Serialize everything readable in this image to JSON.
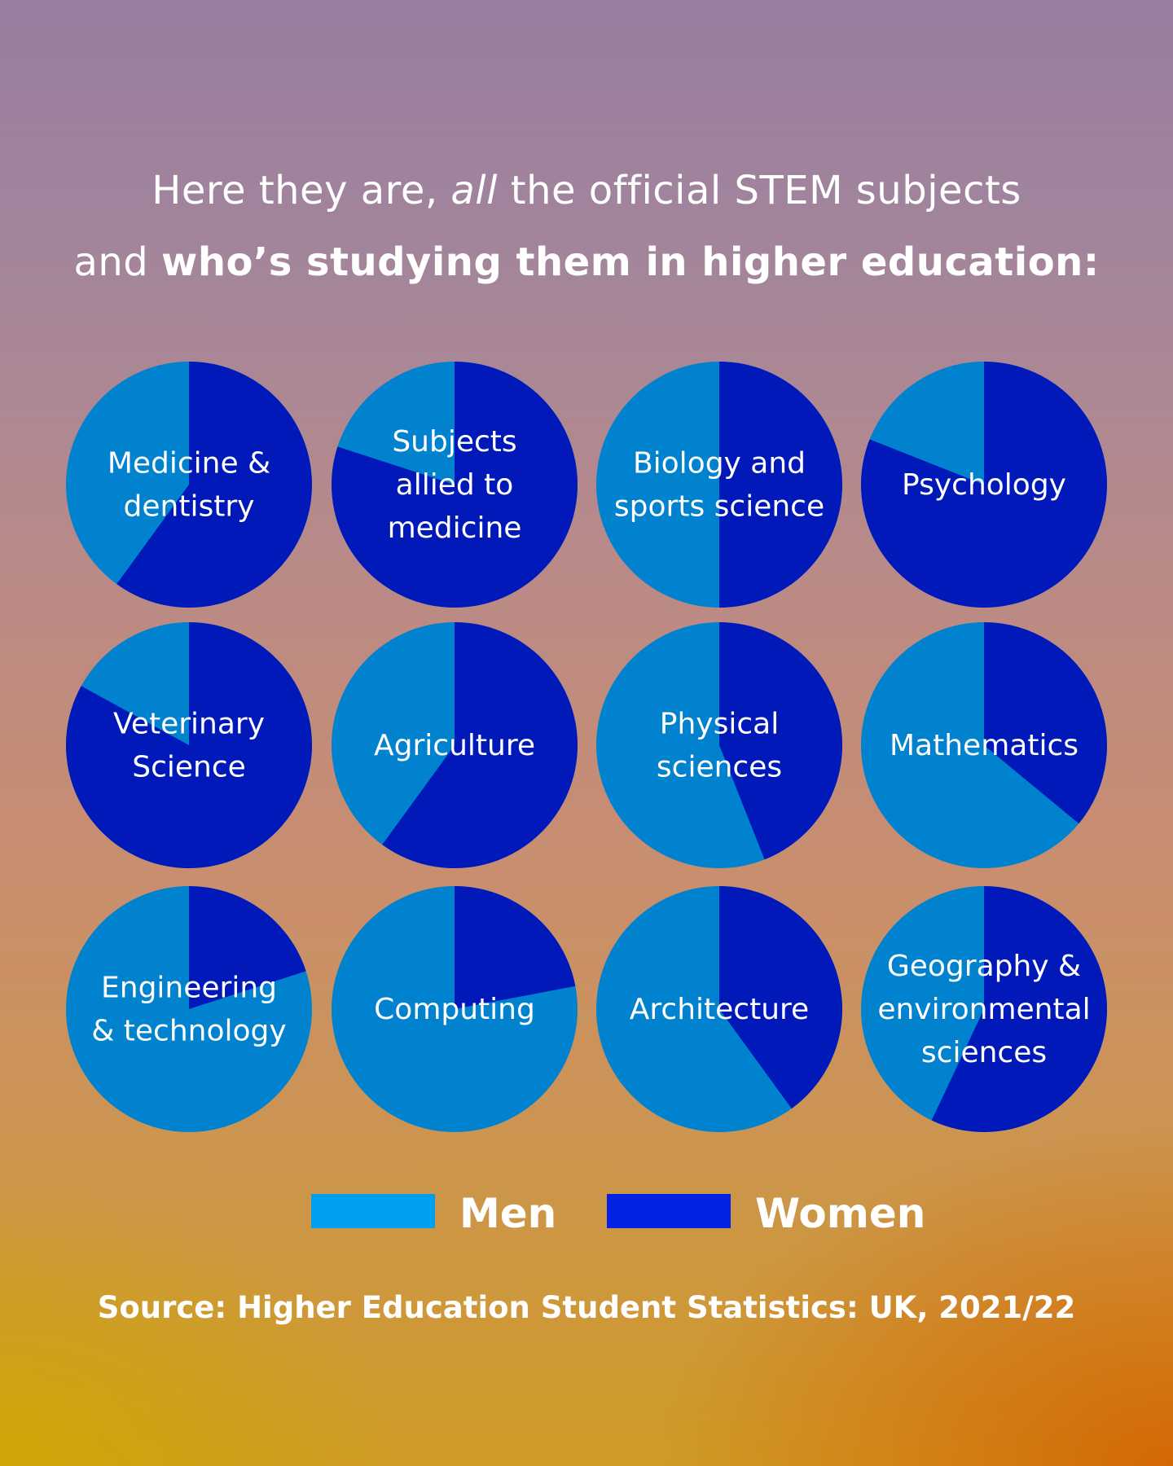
{
  "headline": {
    "line1_a": "Here they are, ",
    "line1_em": "all",
    "line1_b": " the official STEM subjects",
    "line2_a": "and ",
    "line2_bold": "who’s studying them in higher education:"
  },
  "colors": {
    "men": "#0082cf",
    "women": "#0119b8",
    "legend_men": "#00a0f0",
    "legend_women": "#0322e6"
  },
  "chart_data": {
    "type": "pie",
    "series_names": [
      "Men",
      "Women"
    ],
    "pies": [
      {
        "label": [
          "Medicine &",
          "dentistry"
        ],
        "men": 40,
        "women": 60
      },
      {
        "label": [
          "Subjects",
          "allied to",
          "medicine"
        ],
        "men": 20,
        "women": 80
      },
      {
        "label": [
          "Biology and",
          "sports science"
        ],
        "men": 50,
        "women": 50
      },
      {
        "label": [
          "Psychology"
        ],
        "men": 19,
        "women": 81
      },
      {
        "label": [
          "Veterinary",
          "Science"
        ],
        "men": 17,
        "women": 83
      },
      {
        "label": [
          "Agriculture"
        ],
        "men": 40,
        "women": 60
      },
      {
        "label": [
          "Physical",
          "sciences"
        ],
        "men": 56,
        "women": 44
      },
      {
        "label": [
          "Mathematics"
        ],
        "men": 64,
        "women": 36
      },
      {
        "label": [
          "Engineering",
          "& technology"
        ],
        "men": 80,
        "women": 20
      },
      {
        "label": [
          "Computing"
        ],
        "men": 78,
        "women": 22
      },
      {
        "label": [
          "Architecture"
        ],
        "men": 60,
        "women": 40
      },
      {
        "label": [
          "Geography &",
          "environmental",
          "sciences"
        ],
        "men": 43,
        "women": 57
      }
    ]
  },
  "legend": {
    "men": "Men",
    "women": "Women"
  },
  "source": "Source: Higher Education Student Statistics: UK, 2021/22"
}
